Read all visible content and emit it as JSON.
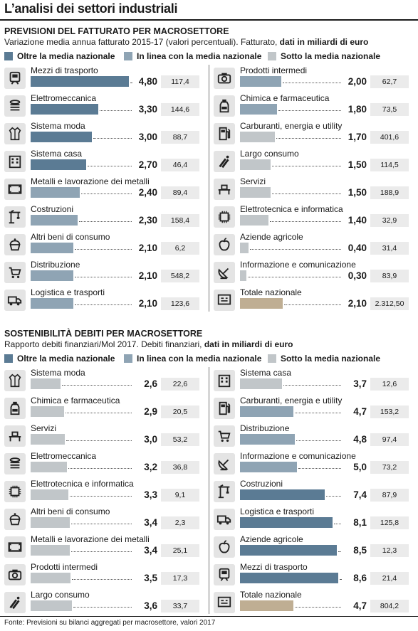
{
  "title": "L’analisi dei settori industriali",
  "colors": {
    "oltre": "#5b7b94",
    "linea": "#8fa4b4",
    "sotto": "#c1c6c9",
    "totale": "#bfae93"
  },
  "legend": {
    "oltre": "Oltre la media nazionale",
    "linea": "In linea con la media nazionale",
    "sotto": "Sotto la media nazionale"
  },
  "sections": [
    {
      "title": "PREVISIONI DEL FATTURATO PER MACROSETTORE",
      "subtitle_plain": "Variazione media annua fatturato 2015-17 (valori percentuali). Fatturato, ",
      "subtitle_bold": "dati in miliardi di euro",
      "decimals": 2,
      "max": 4.8,
      "left": [
        {
          "label": "Mezzi di trasporto",
          "value": "4,80",
          "v": 4.8,
          "box": "117,4",
          "class": "oltre",
          "icon": "train-icon"
        },
        {
          "label": "Elettromeccanica",
          "value": "3,30",
          "v": 3.3,
          "box": "144,6",
          "class": "oltre",
          "icon": "coil-icon"
        },
        {
          "label": "Sistema moda",
          "value": "3,00",
          "v": 3.0,
          "box": "88,7",
          "class": "oltre",
          "icon": "jacket-icon"
        },
        {
          "label": "Sistema casa",
          "value": "2,70",
          "v": 2.7,
          "box": "46,4",
          "class": "oltre",
          "icon": "building-icon"
        },
        {
          "label": "Metalli e lavorazione dei metalli",
          "value": "2,40",
          "v": 2.4,
          "box": "89,4",
          "class": "linea",
          "icon": "metal-frame-icon"
        },
        {
          "label": "Costruzioni",
          "value": "2,30",
          "v": 2.3,
          "box": "158,4",
          "class": "linea",
          "icon": "crane-icon"
        },
        {
          "label": "Altri beni di consumo",
          "value": "2,10",
          "v": 2.1,
          "box": "6,2",
          "class": "linea",
          "icon": "cupcake-icon"
        },
        {
          "label": "Distribuzione",
          "value": "2,10",
          "v": 2.1,
          "box": "548,2",
          "class": "linea",
          "icon": "cart-icon"
        },
        {
          "label": "Logistica e trasporti",
          "value": "2,10",
          "v": 2.1,
          "box": "123,6",
          "class": "linea",
          "icon": "truck-icon"
        }
      ],
      "right": [
        {
          "label": "Prodotti intermedi",
          "value": "2,00",
          "v": 2.0,
          "box": "62,7",
          "class": "linea",
          "icon": "camera-icon"
        },
        {
          "label": "Chimica e farmaceutica",
          "value": "1,80",
          "v": 1.8,
          "box": "73,5",
          "class": "linea",
          "icon": "bottle-icon"
        },
        {
          "label": "Carburanti, energia e utility",
          "value": "1,70",
          "v": 1.7,
          "box": "401,6",
          "class": "sotto",
          "icon": "fuel-pump-icon"
        },
        {
          "label": "Largo consumo",
          "value": "1,50",
          "v": 1.5,
          "box": "114,5",
          "class": "sotto",
          "icon": "bottles-icon"
        },
        {
          "label": "Servizi",
          "value": "1,50",
          "v": 1.5,
          "box": "188,9",
          "class": "sotto",
          "icon": "desk-icon"
        },
        {
          "label": "Elettrotecnica e informatica",
          "value": "1,40",
          "v": 1.4,
          "box": "32,9",
          "class": "sotto",
          "icon": "chip-icon"
        },
        {
          "label": "Aziende agricole",
          "value": "0,40",
          "v": 0.4,
          "box": "31,4",
          "class": "sotto",
          "icon": "apple-icon"
        },
        {
          "label": "Informazione e comunicazione",
          "value": "0,30",
          "v": 0.3,
          "box": "83,9",
          "class": "sotto",
          "icon": "satellite-dish-icon"
        },
        {
          "label": "Totale nazionale",
          "value": "2,10",
          "v": 2.1,
          "box": "2.312,50",
          "class": "totale",
          "icon": "total-icon"
        }
      ]
    },
    {
      "title": "SOSTENIBILITÀ DEBITI PER MACROSETTORE",
      "subtitle_plain": "Rapporto debiti finanziari/Mol 2017.  Debiti finanziari, ",
      "subtitle_bold": "dati in miliardi di euro",
      "decimals": 1,
      "max": 8.6,
      "left": [
        {
          "label": "Sistema moda",
          "value": "2,6",
          "v": 2.6,
          "box": "22,6",
          "class": "sotto",
          "icon": "jacket-icon"
        },
        {
          "label": "Chimica e farmaceutica",
          "value": "2,9",
          "v": 2.9,
          "box": "20,5",
          "class": "sotto",
          "icon": "bottle-icon"
        },
        {
          "label": "Servizi",
          "value": "3,0",
          "v": 3.0,
          "box": "53,2",
          "class": "sotto",
          "icon": "desk-icon"
        },
        {
          "label": "Elettromeccanica",
          "value": "3,2",
          "v": 3.2,
          "box": "36,8",
          "class": "sotto",
          "icon": "coil-icon"
        },
        {
          "label": "Elettrotecnica e informatica",
          "value": "3,3",
          "v": 3.3,
          "box": "9,1",
          "class": "sotto",
          "icon": "chip-icon"
        },
        {
          "label": "Altri beni di consumo",
          "value": "3,4",
          "v": 3.4,
          "box": "2,3",
          "class": "sotto",
          "icon": "cupcake-icon"
        },
        {
          "label": "Metalli e lavorazione dei metalli",
          "value": "3,4",
          "v": 3.4,
          "box": "25,1",
          "class": "sotto",
          "icon": "metal-frame-icon"
        },
        {
          "label": "Prodotti intermedi",
          "value": "3,5",
          "v": 3.5,
          "box": "17,3",
          "class": "sotto",
          "icon": "camera-icon"
        },
        {
          "label": "Largo consumo",
          "value": "3,6",
          "v": 3.6,
          "box": "33,7",
          "class": "sotto",
          "icon": "bottles-icon"
        }
      ],
      "right": [
        {
          "label": "Sistema casa",
          "value": "3,7",
          "v": 3.7,
          "box": "12,6",
          "class": "sotto",
          "icon": "building-icon"
        },
        {
          "label": "Carburanti, energia e utility",
          "value": "4,7",
          "v": 4.7,
          "box": "153,2",
          "class": "linea",
          "icon": "fuel-pump-icon"
        },
        {
          "label": "Distribuzione",
          "value": "4,8",
          "v": 4.8,
          "box": "97,4",
          "class": "linea",
          "icon": "cart-icon"
        },
        {
          "label": "Informazione e comunicazione",
          "value": "5,0",
          "v": 5.0,
          "box": "73,2",
          "class": "linea",
          "icon": "satellite-dish-icon"
        },
        {
          "label": "Costruzioni",
          "value": "7,4",
          "v": 7.4,
          "box": "87,9",
          "class": "oltre",
          "icon": "crane-icon"
        },
        {
          "label": "Logistica e trasporti",
          "value": "8,1",
          "v": 8.1,
          "box": "125,8",
          "class": "oltre",
          "icon": "truck-icon"
        },
        {
          "label": "Aziende agricole",
          "value": "8,5",
          "v": 8.5,
          "box": "12,3",
          "class": "oltre",
          "icon": "apple-icon"
        },
        {
          "label": "Mezzi di trasporto",
          "value": "8,6",
          "v": 8.6,
          "box": "21,4",
          "class": "oltre",
          "icon": "train-icon"
        },
        {
          "label": "Totale nazionale",
          "value": "4,7",
          "v": 4.7,
          "box": "804,2",
          "class": "totale",
          "icon": "total-icon"
        }
      ]
    }
  ],
  "source": "Fonte: Previsioni su bilanci aggregati per macrosettore, valori 2017",
  "chart_data": [
    {
      "type": "bar",
      "title": "PREVISIONI DEL FATTURATO PER MACROSETTORE",
      "categories": [
        "Mezzi di trasporto",
        "Elettromeccanica",
        "Sistema moda",
        "Sistema casa",
        "Metalli e lavorazione dei metalli",
        "Costruzioni",
        "Altri beni di consumo",
        "Distribuzione",
        "Logistica e trasporti",
        "Prodotti intermedi",
        "Chimica e farmaceutica",
        "Carburanti, energia e utility",
        "Largo consumo",
        "Servizi",
        "Elettrotecnica e informatica",
        "Aziende agricole",
        "Informazione e comunicazione",
        "Totale nazionale"
      ],
      "values": [
        4.8,
        3.3,
        3.0,
        2.7,
        2.4,
        2.3,
        2.1,
        2.1,
        2.1,
        2.0,
        1.8,
        1.7,
        1.5,
        1.5,
        1.4,
        0.4,
        0.3,
        2.1
      ],
      "fatturato": [
        117.4,
        144.6,
        88.7,
        46.4,
        89.4,
        158.4,
        6.2,
        548.2,
        123.6,
        62.7,
        73.5,
        401.6,
        114.5,
        188.9,
        32.9,
        31.4,
        83.9,
        2312.5
      ]
    },
    {
      "type": "bar",
      "title": "SOSTENIBILITÀ DEBITI PER MACROSETTORE",
      "categories": [
        "Sistema moda",
        "Chimica e farmaceutica",
        "Servizi",
        "Elettromeccanica",
        "Elettrotecnica e informatica",
        "Altri beni di consumo",
        "Metalli e lavorazione dei metalli",
        "Prodotti intermedi",
        "Largo consumo",
        "Sistema casa",
        "Carburanti, energia e utility",
        "Distribuzione",
        "Informazione e comunicazione",
        "Costruzioni",
        "Logistica e trasporti",
        "Aziende agricole",
        "Mezzi di trasporto",
        "Totale nazionale"
      ],
      "values": [
        2.6,
        2.9,
        3.0,
        3.2,
        3.3,
        3.4,
        3.4,
        3.5,
        3.6,
        3.7,
        4.7,
        4.8,
        5.0,
        7.4,
        8.1,
        8.5,
        8.6,
        4.7
      ],
      "debiti_finanziari": [
        22.6,
        20.5,
        53.2,
        36.8,
        9.1,
        2.3,
        25.1,
        17.3,
        33.7,
        12.6,
        153.2,
        97.4,
        73.2,
        87.9,
        125.8,
        12.3,
        21.4,
        804.2
      ]
    }
  ]
}
